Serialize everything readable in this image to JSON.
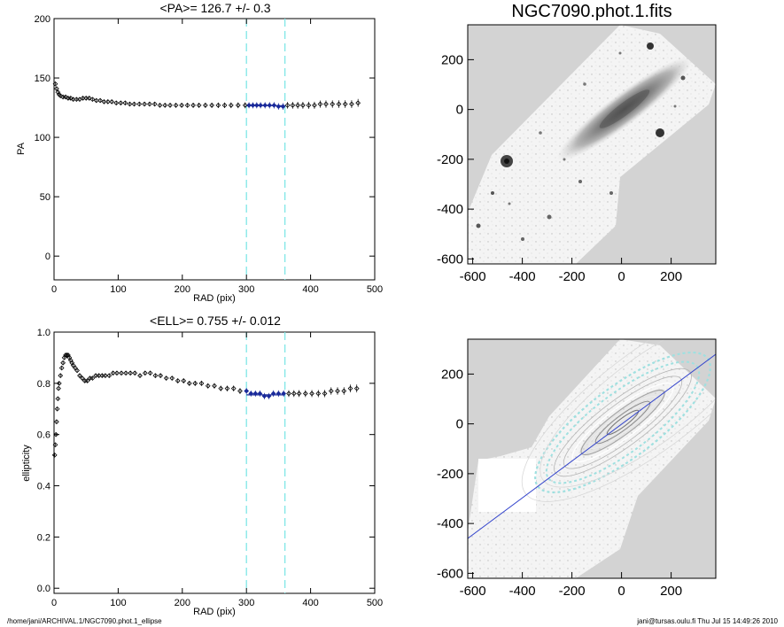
{
  "footer": {
    "left": "/home/jani/ARCHIVAL.1/NGC7090.phot.1_ellipse",
    "right": "jani@tursas.oulu.fi  Thu Jul 15 14:49:26 2010"
  },
  "colors": {
    "fit": "#1a2a9a",
    "marker": "#000000",
    "vline": "#7fe6e6",
    "frame": "#000000",
    "image_bg": "#d3d3d3"
  },
  "chart_data": [
    {
      "type": "scatter",
      "title": "<PA>= 126.7 +/-   0.3",
      "xlabel": "RAD (pix)",
      "ylabel": "PA",
      "xlim": [
        0,
        500
      ],
      "ylim": [
        -20,
        200
      ],
      "xticks": [
        "0",
        "100",
        "200",
        "300",
        "400",
        "500"
      ],
      "yticks": [
        "0",
        "50",
        "100",
        "150",
        "200"
      ],
      "vertical_lines": [
        300,
        360
      ],
      "fit": {
        "y": 126.7,
        "x_range": [
          300,
          360
        ]
      },
      "x": [
        2,
        4,
        6,
        8,
        10,
        14,
        18,
        22,
        26,
        30,
        35,
        40,
        45,
        50,
        55,
        60,
        66,
        72,
        78,
        84,
        90,
        97,
        104,
        111,
        118,
        125,
        133,
        141,
        149,
        157,
        165,
        173,
        181,
        190,
        199,
        208,
        217,
        226,
        236,
        246,
        256,
        266,
        276,
        287,
        298,
        304,
        310,
        316,
        322,
        329,
        336,
        343,
        350,
        357,
        364,
        372,
        380,
        388,
        397,
        406,
        415,
        424,
        434,
        444,
        454,
        464,
        474
      ],
      "y": [
        145,
        141,
        138,
        136,
        135,
        134,
        134,
        133,
        133,
        132,
        132,
        132,
        133,
        133,
        133,
        132,
        131,
        131,
        130,
        130,
        130,
        129,
        129,
        129,
        128,
        128,
        128,
        128,
        128,
        128,
        127,
        127,
        127,
        127,
        127,
        127,
        127,
        127,
        127,
        127,
        127,
        127,
        127,
        127,
        127,
        127,
        127,
        127,
        127,
        127,
        127,
        127,
        126,
        126,
        127,
        127,
        127,
        127,
        127,
        127,
        128,
        128,
        128,
        128,
        128,
        128,
        129
      ],
      "grid": false
    },
    {
      "type": "scatter",
      "title": "<ELL>= 0.755 +/-  0.012",
      "xlabel": "RAD (pix)",
      "ylabel": "ellipticity",
      "xlim": [
        0,
        500
      ],
      "ylim": [
        -0.02,
        1.0
      ],
      "xticks": [
        "0",
        "100",
        "200",
        "300",
        "400",
        "500"
      ],
      "yticks": [
        "0.0",
        "0.2",
        "0.4",
        "0.6",
        "0.8",
        "1.0"
      ],
      "vertical_lines": [
        300,
        360
      ],
      "fit": {
        "y": 0.755,
        "x_range": [
          300,
          360
        ]
      },
      "x": [
        1,
        2,
        3,
        4,
        5,
        6,
        7,
        8,
        10,
        12,
        14,
        16,
        18,
        20,
        22,
        24,
        26,
        28,
        30,
        33,
        36,
        40,
        44,
        48,
        52,
        56,
        60,
        65,
        70,
        75,
        80,
        86,
        92,
        98,
        105,
        112,
        119,
        126,
        134,
        142,
        150,
        158,
        166,
        175,
        184,
        193,
        202,
        211,
        220,
        230,
        240,
        250,
        260,
        270,
        280,
        290,
        300,
        307,
        314,
        321,
        328,
        335,
        342,
        350,
        358,
        366,
        374,
        382,
        392,
        402,
        412,
        422,
        432,
        442,
        452,
        462,
        472
      ],
      "y": [
        0.52,
        0.56,
        0.6,
        0.65,
        0.7,
        0.74,
        0.78,
        0.8,
        0.83,
        0.86,
        0.88,
        0.9,
        0.91,
        0.91,
        0.91,
        0.9,
        0.89,
        0.88,
        0.87,
        0.86,
        0.85,
        0.83,
        0.82,
        0.81,
        0.81,
        0.82,
        0.82,
        0.83,
        0.83,
        0.83,
        0.83,
        0.83,
        0.84,
        0.84,
        0.84,
        0.84,
        0.84,
        0.84,
        0.83,
        0.84,
        0.84,
        0.83,
        0.83,
        0.82,
        0.82,
        0.81,
        0.81,
        0.8,
        0.8,
        0.8,
        0.79,
        0.79,
        0.78,
        0.78,
        0.78,
        0.77,
        0.77,
        0.76,
        0.76,
        0.76,
        0.75,
        0.75,
        0.76,
        0.76,
        0.76,
        0.76,
        0.76,
        0.76,
        0.76,
        0.76,
        0.76,
        0.76,
        0.77,
        0.77,
        0.77,
        0.78,
        0.78
      ],
      "grid": false
    },
    {
      "type": "heatmap",
      "title": "NGC7090.phot.1.fits",
      "xlabel": "",
      "ylabel": "",
      "xlim": [
        -620,
        380
      ],
      "ylim": [
        -620,
        340
      ],
      "xticks": [
        "-600",
        "-400",
        "-200",
        "0",
        "200"
      ],
      "yticks": [
        "200",
        "0",
        "-200",
        "-400",
        "-600"
      ]
    },
    {
      "type": "heatmap",
      "title": "",
      "xlabel": "",
      "ylabel": "",
      "xlim": [
        -620,
        380
      ],
      "ylim": [
        -620,
        340
      ],
      "xticks": [
        "-600",
        "-400",
        "-200",
        "0",
        "200"
      ],
      "yticks": [
        "200",
        "0",
        "-200",
        "-400",
        "-600"
      ],
      "major_axis_line": {
        "slope_deg": 36.7
      }
    }
  ]
}
